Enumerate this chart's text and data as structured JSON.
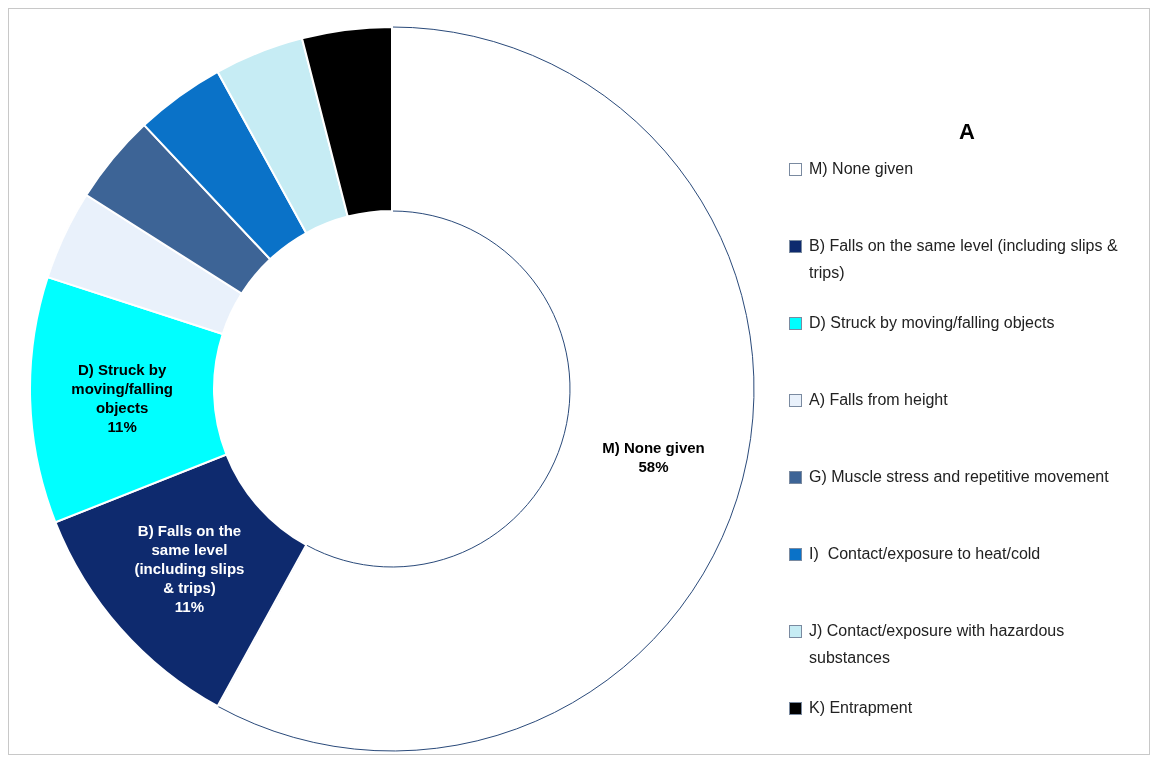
{
  "chart_data": {
    "type": "donut",
    "legend_title": "A",
    "categories": [
      "M) None given",
      "B) Falls on the same level (including slips & trips)",
      "D) Struck by moving/falling objects",
      "A) Falls from height",
      "G) Muscle stress and repetitive movement",
      "I)  Contact/exposure to heat/cold",
      "J) Contact/exposure with hazardous substances",
      "K) Entrapment"
    ],
    "values": [
      58,
      11,
      11,
      4,
      4,
      4,
      4,
      4
    ],
    "value_labels": [
      "58%",
      "11%",
      "11%",
      null,
      null,
      null,
      null,
      null
    ],
    "colors": [
      "#ffffff",
      "#0e2a6e",
      "#00ffff",
      "#e9f1fb",
      "#3d6496",
      "#0a72c8",
      "#c6ecf4",
      "#000000"
    ],
    "legend": "right"
  }
}
